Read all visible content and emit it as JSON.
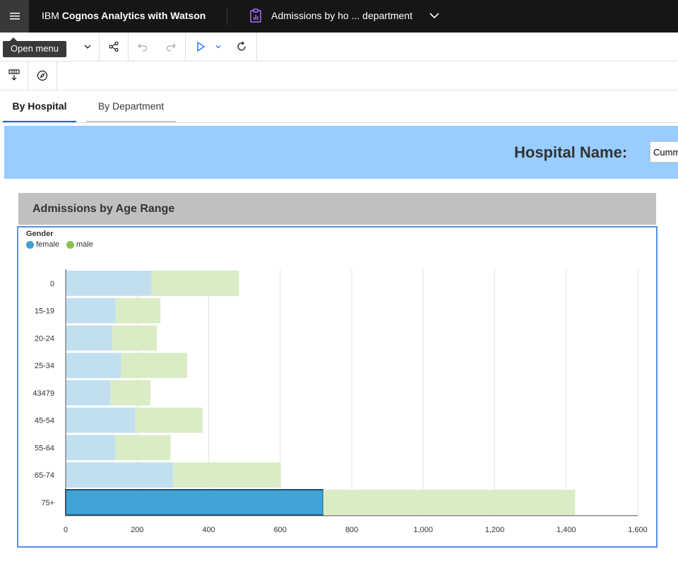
{
  "app": {
    "brand_prefix": "IBM ",
    "brand_bold": "Cognos Analytics with Watson",
    "report_title": "Admissions by ho ... department",
    "tooltip": "Open menu"
  },
  "icons": {
    "menu": "hamburger-icon",
    "report": "clipboard-report-icon",
    "title_dropdown": "chevron-down-icon",
    "toolbar": [
      "chevron-down-icon",
      "share-icon",
      "undo-icon",
      "redo-icon",
      "run-icon",
      "chevron-down-icon",
      "refresh-icon",
      "filter-insert-icon",
      "compass-icon"
    ]
  },
  "tabs": [
    {
      "label": "By Hospital",
      "active": true
    },
    {
      "label": "By Department",
      "active": false
    }
  ],
  "banner": {
    "label": "Hospital Name:",
    "selected": "Cummings"
  },
  "chart_header": "Admissions by Age Range",
  "legend": {
    "title": "Gender",
    "items": [
      {
        "label": "female",
        "color": "#3f9fd4"
      },
      {
        "label": "male",
        "color": "#86c44f"
      }
    ]
  },
  "colors": {
    "female_light": "#c2dff0",
    "female_selected": "#42a4d6",
    "male_light": "#d9ecc6",
    "accent": "#0f62fe",
    "frame": "#5b8ee6"
  },
  "chart_data": {
    "type": "bar",
    "orientation": "horizontal",
    "stacked": true,
    "categories": [
      "0",
      "15-19",
      "20-24",
      "25-34",
      "43479",
      "45-54",
      "55-64",
      "65-74",
      "75+"
    ],
    "series": [
      {
        "name": "female",
        "values": [
          240,
          140,
          130,
          155,
          125,
          195,
          138,
          300,
          720
        ]
      },
      {
        "name": "male",
        "values": [
          245,
          125,
          125,
          185,
          112,
          188,
          155,
          302,
          705
        ]
      }
    ],
    "selected_category": "75+",
    "selected_series": "female",
    "xlim": [
      0,
      1600
    ],
    "xticks": [
      0,
      200,
      400,
      600,
      800,
      1000,
      1200,
      1400,
      1600
    ],
    "xtick_labels": [
      "0",
      "200",
      "400",
      "600",
      "800",
      "1,000",
      "1,200",
      "1,400",
      "1,600"
    ],
    "grid": true,
    "legend_position": "top-left",
    "title": "Admissions by Age Range",
    "xlabel": "",
    "ylabel": ""
  }
}
